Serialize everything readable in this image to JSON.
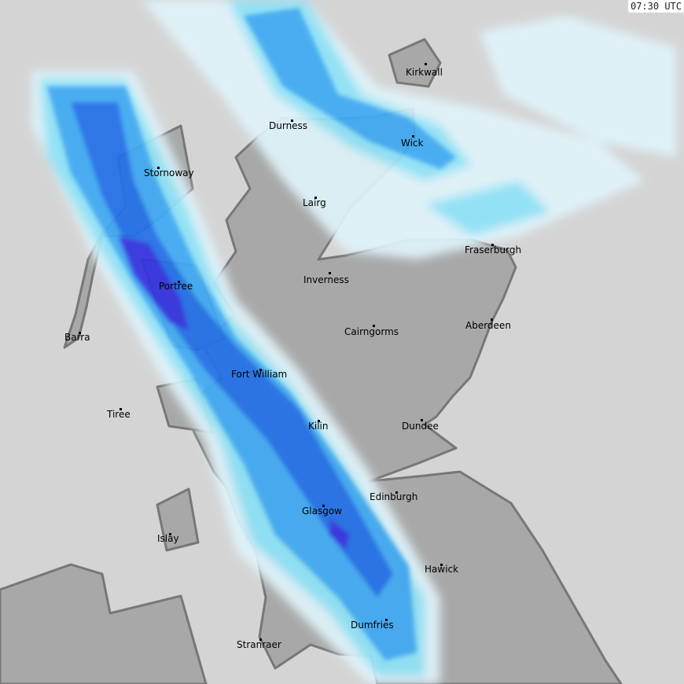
{
  "timestamp": "07:30 UTC",
  "colors": {
    "sea": "#d4d4d4",
    "land": "#a8a8a8",
    "coastline": "#777777",
    "rain_very_light": "#e0f4fb",
    "rain_light": "#8ee3f8",
    "rain_moderate": "#40aaf4",
    "rain_heavy": "#2070e8",
    "rain_very_heavy": "#3030e0"
  },
  "cities": [
    {
      "name": "Kirkwall"
    },
    {
      "name": "Durness"
    },
    {
      "name": "Wick"
    },
    {
      "name": "Stornoway"
    },
    {
      "name": "Lairg"
    },
    {
      "name": "Fraserburgh"
    },
    {
      "name": "Inverness"
    },
    {
      "name": "Portree"
    },
    {
      "name": "Aberdeen"
    },
    {
      "name": "Barra"
    },
    {
      "name": "Cairngorms"
    },
    {
      "name": "Fort William"
    },
    {
      "name": "Tiree"
    },
    {
      "name": "Kilin"
    },
    {
      "name": "Dundee"
    },
    {
      "name": "Edinburgh"
    },
    {
      "name": "Glasgow"
    },
    {
      "name": "Islay"
    },
    {
      "name": "Hawick"
    },
    {
      "name": "Dumfries"
    },
    {
      "name": "Stranraer"
    }
  ]
}
